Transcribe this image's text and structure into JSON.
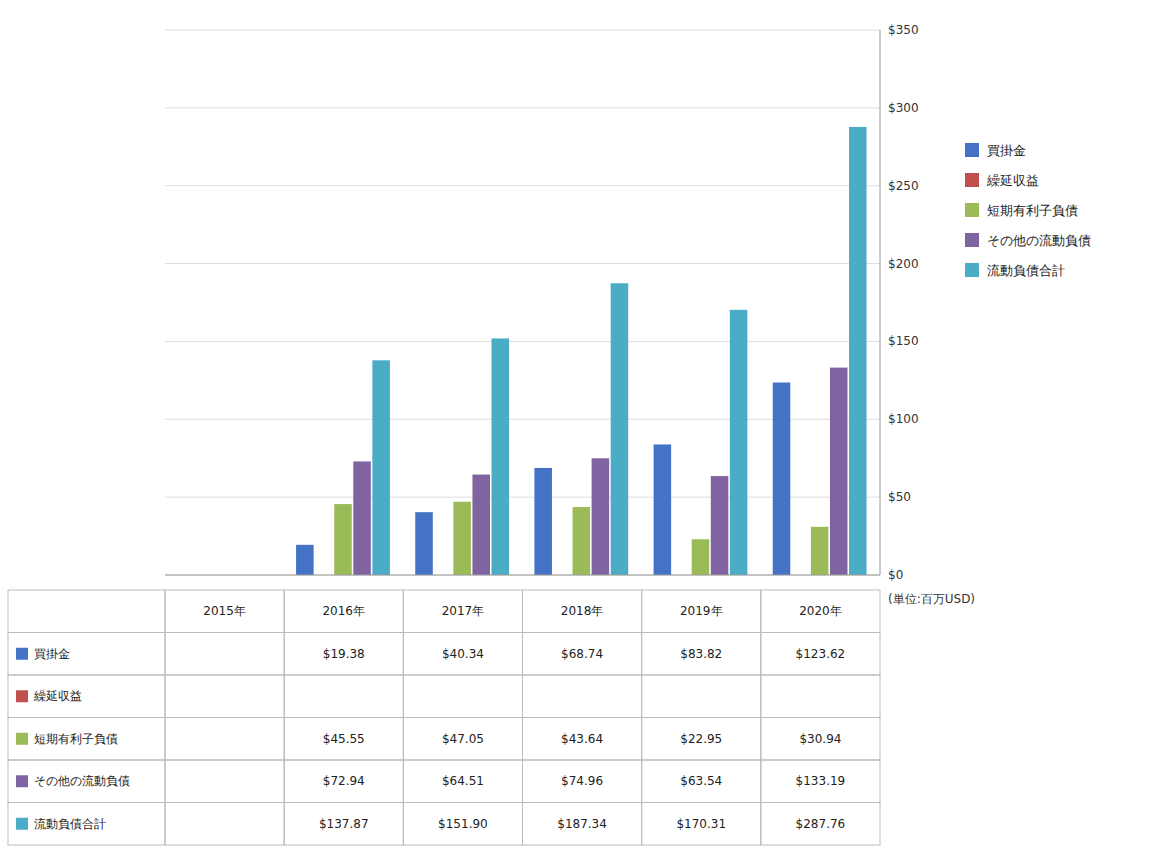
{
  "chart_data": {
    "type": "bar",
    "categories": [
      "2015年",
      "2016年",
      "2017年",
      "2018年",
      "2019年",
      "2020年"
    ],
    "series": [
      {
        "name": "買掛金",
        "color": "#4472C4",
        "values": [
          0,
          19.38,
          40.34,
          68.74,
          83.82,
          123.62
        ],
        "value_labels": [
          null,
          "$19.38",
          "$40.34",
          "$68.74",
          "$83.82",
          "$123.62"
        ]
      },
      {
        "name": "繰延収益",
        "color": "#C0504D",
        "values": [
          0,
          0,
          0,
          0,
          0,
          0
        ],
        "value_labels": [
          null,
          null,
          null,
          null,
          null,
          null
        ]
      },
      {
        "name": "短期有利子負債",
        "color": "#9BBB59",
        "values": [
          0,
          45.55,
          47.05,
          43.64,
          22.95,
          30.94
        ],
        "value_labels": [
          null,
          "$45.55",
          "$47.05",
          "$43.64",
          "$22.95",
          "$30.94"
        ]
      },
      {
        "name": "その他の流動負債",
        "color": "#8064A2",
        "values": [
          0,
          72.94,
          64.51,
          74.96,
          63.54,
          133.19
        ],
        "value_labels": [
          null,
          "$72.94",
          "$64.51",
          "$74.96",
          "$63.54",
          "$133.19"
        ]
      },
      {
        "name": "流動負債合計",
        "color": "#4BACC6",
        "values": [
          0,
          137.87,
          151.9,
          187.34,
          170.31,
          287.76
        ],
        "value_labels": [
          null,
          "$137.87",
          "$151.90",
          "$187.34",
          "$170.31",
          "$287.76"
        ]
      }
    ],
    "ylabel": "(単位:百万USD)",
    "ylim": [
      0,
      350
    ],
    "yticks": [
      {
        "value": 0,
        "label": "$0"
      },
      {
        "value": 50,
        "label": "$50"
      },
      {
        "value": 100,
        "label": "$100"
      },
      {
        "value": 150,
        "label": "$150"
      },
      {
        "value": 200,
        "label": "$200"
      },
      {
        "value": 250,
        "label": "$250"
      },
      {
        "value": 300,
        "label": "$300"
      },
      {
        "value": 350,
        "label": "$350"
      }
    ],
    "grid": true,
    "data_labels": true,
    "legend": "right"
  }
}
